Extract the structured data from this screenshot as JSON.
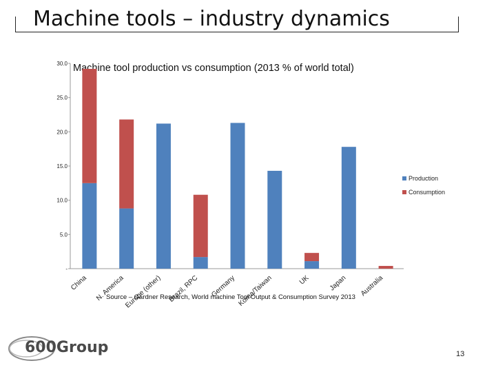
{
  "slide": {
    "title": "Machine tools – industry dynamics",
    "page_number": "13",
    "logo_text": "600Group"
  },
  "chart_data": {
    "type": "bar",
    "stacked": true,
    "title": "Machine tool production vs consumption (2013 % of world total)",
    "source": "Source – Gardner Research, World machine Tool Output & Consumption Survey 2013",
    "categories": [
      "China",
      "N. America",
      "Europe (other)",
      "Brazil, RPC",
      "Germany",
      "Korea/Taiwan",
      "UK",
      "Japan",
      "Australia"
    ],
    "series": [
      {
        "name": "Production",
        "color": "#4f81bd",
        "values": [
          12.5,
          8.8,
          21.2,
          1.7,
          21.3,
          14.3,
          1.1,
          17.8,
          0.0
        ]
      },
      {
        "name": "Consumption",
        "color": "#c0504d",
        "values": [
          16.7,
          13.0,
          0.0,
          9.1,
          0.0,
          0.0,
          1.2,
          0.0,
          0.4
        ]
      }
    ],
    "ylim": [
      0,
      30
    ],
    "yticks": [
      "30.0",
      "25.0",
      "20.0",
      "15.0",
      "10.0",
      "5.0",
      "-"
    ],
    "ytick_values": [
      30,
      25,
      20,
      15,
      10,
      5,
      0
    ],
    "legend_position": "right"
  }
}
